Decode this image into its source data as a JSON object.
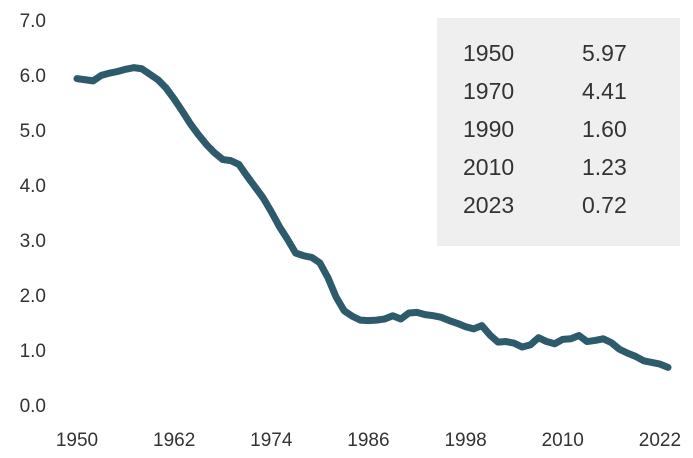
{
  "chart_data": {
    "type": "line",
    "x": [
      1950,
      1951,
      1952,
      1953,
      1954,
      1955,
      1956,
      1957,
      1958,
      1959,
      1960,
      1961,
      1962,
      1963,
      1964,
      1965,
      1966,
      1967,
      1968,
      1969,
      1970,
      1971,
      1972,
      1973,
      1974,
      1975,
      1976,
      1977,
      1978,
      1979,
      1980,
      1981,
      1982,
      1983,
      1984,
      1985,
      1986,
      1987,
      1988,
      1989,
      1990,
      1991,
      1992,
      1993,
      1994,
      1995,
      1996,
      1997,
      1998,
      1999,
      2000,
      2001,
      2002,
      2003,
      2004,
      2005,
      2006,
      2007,
      2008,
      2009,
      2010,
      2011,
      2012,
      2013,
      2014,
      2015,
      2016,
      2017,
      2018,
      2019,
      2020,
      2021,
      2022,
      2023
    ],
    "series": [
      {
        "color": "#2d5b6b",
        "values": [
          5.97,
          5.95,
          5.93,
          6.03,
          6.07,
          6.1,
          6.14,
          6.17,
          6.15,
          6.05,
          5.95,
          5.8,
          5.6,
          5.38,
          5.15,
          4.95,
          4.77,
          4.62,
          4.5,
          4.48,
          4.41,
          4.2,
          4.0,
          3.8,
          3.55,
          3.28,
          3.05,
          2.8,
          2.75,
          2.72,
          2.62,
          2.35,
          2.0,
          1.75,
          1.65,
          1.58,
          1.57,
          1.58,
          1.6,
          1.66,
          1.6,
          1.71,
          1.72,
          1.68,
          1.66,
          1.63,
          1.57,
          1.52,
          1.46,
          1.42,
          1.48,
          1.31,
          1.18,
          1.19,
          1.16,
          1.09,
          1.13,
          1.26,
          1.19,
          1.15,
          1.23,
          1.24,
          1.3,
          1.19,
          1.21,
          1.24,
          1.17,
          1.05,
          0.98,
          0.92,
          0.84,
          0.81,
          0.78,
          0.72
        ]
      }
    ],
    "xlim": [
      1950,
      2023
    ],
    "xticks": [
      1950,
      1962,
      1974,
      1986,
      1998,
      2010,
      2022
    ],
    "ylim": [
      0,
      7
    ],
    "yticks": [
      {
        "value": 0,
        "label": "0.0"
      },
      {
        "value": 1,
        "label": "1.0"
      },
      {
        "value": 2,
        "label": "2.0"
      },
      {
        "value": 3,
        "label": "3.0"
      },
      {
        "value": 4,
        "label": "4.0"
      },
      {
        "value": 5,
        "label": "5.0"
      },
      {
        "value": 6,
        "label": "6.0"
      },
      {
        "value": 7,
        "label": "7.0"
      }
    ],
    "grid": false,
    "table": {
      "rows": [
        [
          "1950",
          "5.97"
        ],
        [
          "1970",
          "4.41"
        ],
        [
          "1990",
          "1.60"
        ],
        [
          "2010",
          "1.23"
        ],
        [
          "2023",
          "0.72"
        ]
      ]
    }
  }
}
